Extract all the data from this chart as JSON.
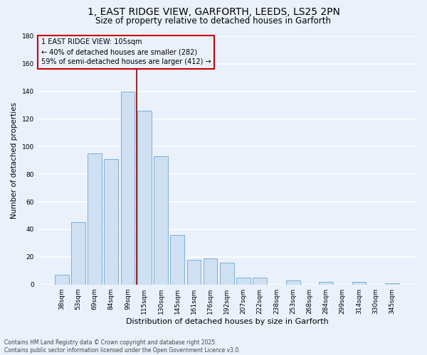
{
  "title": "1, EAST RIDGE VIEW, GARFORTH, LEEDS, LS25 2PN",
  "subtitle": "Size of property relative to detached houses in Garforth",
  "xlabel": "Distribution of detached houses by size in Garforth",
  "ylabel": "Number of detached properties",
  "footer_line1": "Contains HM Land Registry data © Crown copyright and database right 2025.",
  "footer_line2": "Contains public sector information licensed under the Open Government Licence v3.0.",
  "bar_labels": [
    "38sqm",
    "53sqm",
    "69sqm",
    "84sqm",
    "99sqm",
    "115sqm",
    "130sqm",
    "145sqm",
    "161sqm",
    "176sqm",
    "192sqm",
    "207sqm",
    "222sqm",
    "238sqm",
    "253sqm",
    "268sqm",
    "284sqm",
    "299sqm",
    "314sqm",
    "330sqm",
    "345sqm"
  ],
  "bar_values": [
    7,
    45,
    95,
    91,
    140,
    126,
    93,
    36,
    18,
    19,
    16,
    5,
    5,
    0,
    3,
    0,
    2,
    0,
    2,
    0,
    1
  ],
  "bar_color": "#cfe0f3",
  "bar_edge_color": "#7bafd4",
  "background_color": "#eaf1fb",
  "grid_color": "#ffffff",
  "annotation_text": "1 EAST RIDGE VIEW: 105sqm\n← 40% of detached houses are smaller (282)\n59% of semi-detached houses are larger (412) →",
  "annotation_box_edge": "#cc0000",
  "vline_x": 4.55,
  "vline_color": "#8b0000",
  "ylim": [
    0,
    180
  ],
  "yticks": [
    0,
    20,
    40,
    60,
    80,
    100,
    120,
    140,
    160,
    180
  ],
  "title_fontsize": 10,
  "subtitle_fontsize": 8.5,
  "xlabel_fontsize": 8,
  "ylabel_fontsize": 7.5,
  "tick_fontsize": 6.5,
  "annotation_fontsize": 7,
  "footer_fontsize": 5.5
}
